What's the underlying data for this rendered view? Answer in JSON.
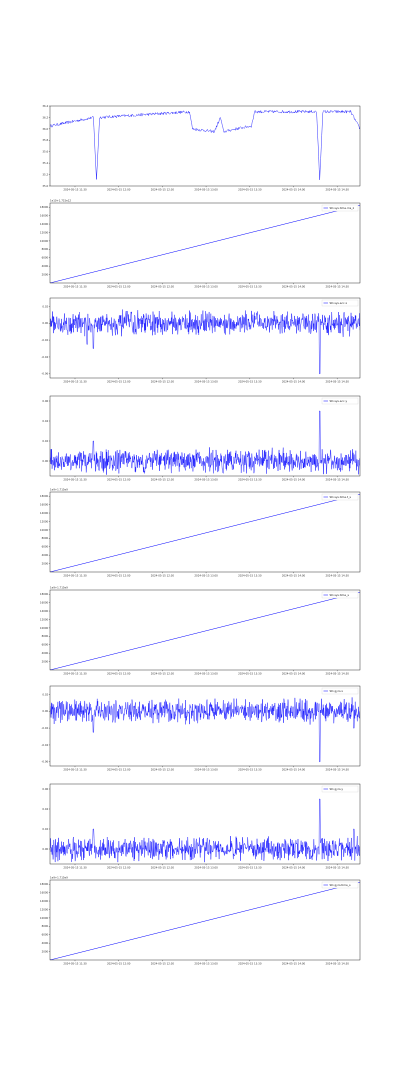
{
  "colors": {
    "line": "#0000ff",
    "axis": "#000000",
    "background": "#ffffff"
  },
  "x_tick_labels": [
    "2024-05-15 11:30",
    "2024-05-15 12:00",
    "2024-05-15 12:30",
    "2024-05-15 13:00",
    "2024-05-15 13:30",
    "2024-05-15 14:00",
    "2024-05-15 14:30"
  ],
  "chart_data": [
    {
      "type": "line",
      "legend": "",
      "legend_position": "none",
      "offset": "",
      "y_tick_labels": [
        "35.0",
        "35.2",
        "35.4",
        "35.6",
        "35.8",
        "36.0",
        "36.2",
        "36.4"
      ],
      "ylim": [
        35.0,
        36.4
      ],
      "description_points": {
        "x": [
          0.0,
          0.14,
          0.15,
          0.16,
          0.45,
          0.46,
          0.53,
          0.55,
          0.56,
          0.6,
          0.65,
          0.66,
          0.86,
          0.87,
          0.88,
          0.97,
          1.0
        ],
        "y": [
          36.05,
          36.2,
          35.1,
          36.2,
          36.3,
          36.0,
          35.95,
          36.2,
          35.95,
          36.0,
          36.05,
          36.3,
          36.3,
          35.1,
          36.3,
          36.3,
          36.0
        ]
      }
    },
    {
      "type": "line",
      "legend": "SD.sys.time.ms_z",
      "legend_position": "top-right",
      "offset": "1e10+1.715e12",
      "y_tick_labels": [
        "2000",
        "4000",
        "6000",
        "8000",
        "10000",
        "12000",
        "14000",
        "16000",
        "18000"
      ],
      "ylim": [
        0,
        19000
      ],
      "linear": [
        0,
        18500
      ]
    },
    {
      "type": "line",
      "legend": "SD.sys.acc.x",
      "legend_position": "top-right",
      "offset": "",
      "y_tick_labels": [
        "-0.06",
        "-0.04",
        "-0.02",
        "0.00",
        "0.02"
      ],
      "ylim": [
        -0.065,
        0.03
      ],
      "noise": {
        "base": 0.0,
        "amp": 0.012,
        "spikes": [
          [
            0.14,
            -0.03
          ],
          [
            0.87,
            -0.06
          ],
          [
            0.12,
            -0.025
          ]
        ]
      }
    },
    {
      "type": "line",
      "legend": "SD.sys.acc.y",
      "legend_position": "top-right",
      "offset": "",
      "y_tick_labels": [
        "0.00",
        "0.02",
        "0.04",
        "0.06"
      ],
      "ylim": [
        -0.015,
        0.065
      ],
      "noise": {
        "base": 0.0,
        "amp": 0.01,
        "spikes": [
          [
            0.14,
            0.02
          ],
          [
            0.87,
            0.05
          ]
        ]
      }
    },
    {
      "type": "line",
      "legend": "SD.sys.time.t_s",
      "legend_position": "top-right",
      "offset": "1e9+1.715e9",
      "y_tick_labels": [
        "2000",
        "4000",
        "6000",
        "8000",
        "10000",
        "12000",
        "14000",
        "16000",
        "18000"
      ],
      "ylim": [
        0,
        19000
      ],
      "linear": [
        0,
        18500
      ]
    },
    {
      "type": "line",
      "legend": "SD.sys.time_s",
      "legend_position": "top-right",
      "offset": "1e9+1.715e9",
      "y_tick_labels": [
        "2000",
        "4000",
        "6000",
        "8000",
        "10000",
        "12000",
        "14000",
        "16000",
        "18000"
      ],
      "ylim": [
        0,
        19000
      ],
      "linear": [
        0,
        18500
      ]
    },
    {
      "type": "line",
      "legend": "SD.gyro.x",
      "legend_position": "top-right",
      "offset": "",
      "y_tick_labels": [
        "-0.06",
        "-0.04",
        "-0.02",
        "0.00",
        "0.02"
      ],
      "ylim": [
        -0.065,
        0.03
      ],
      "noise": {
        "base": 0.0,
        "amp": 0.012,
        "spikes": [
          [
            0.14,
            -0.025
          ],
          [
            0.87,
            -0.06
          ],
          [
            0.98,
            -0.02
          ]
        ]
      }
    },
    {
      "type": "line",
      "legend": "SD.gyro.y",
      "legend_position": "top-right",
      "offset": "",
      "y_tick_labels": [
        "0.00",
        "0.02",
        "0.04",
        "0.06"
      ],
      "ylim": [
        -0.015,
        0.065
      ],
      "noise": {
        "base": 0.0,
        "amp": 0.01,
        "spikes": [
          [
            0.14,
            0.02
          ],
          [
            0.87,
            0.05
          ],
          [
            0.98,
            0.02
          ]
        ]
      }
    },
    {
      "type": "line",
      "legend": "SD.gyro.time_s",
      "legend_position": "top-right",
      "offset": "1e9+1.715e9",
      "y_tick_labels": [
        "2000",
        "4000",
        "6000",
        "8000",
        "10000",
        "12000",
        "14000",
        "16000",
        "18000"
      ],
      "ylim": [
        0,
        19000
      ],
      "linear": [
        0,
        18500
      ]
    }
  ]
}
